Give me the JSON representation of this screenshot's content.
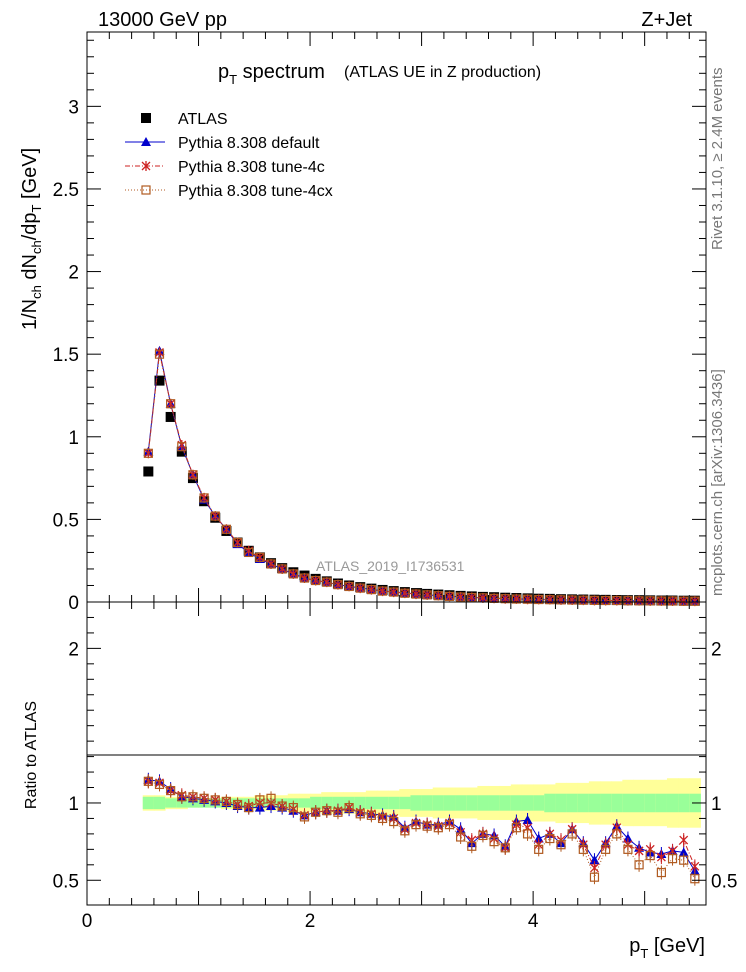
{
  "header": {
    "left": "13000 GeV pp",
    "right": "Z+Jet"
  },
  "side_text": {
    "rivet": "Rivet 3.1.10, ≥ 2.4M events",
    "site": "mcplots.cern.ch [arXiv:1306.3436]"
  },
  "watermark": "ATLAS_2019_I1736531",
  "chart_data": [
    {
      "type": "scatter",
      "title": "p_T spectrum",
      "title_main": "p",
      "title_sub": "T",
      "title_rest": " spectrum",
      "subtitle": "(ATLAS UE in Z production)",
      "ylabel": "1/N_ch dN_ch/dp_T [GeV]",
      "xlim": [
        0,
        5.55
      ],
      "ylim": [
        0,
        3.45
      ],
      "y_ticks": [
        "0",
        "0.5",
        "1",
        "1.5",
        "2",
        "2.5",
        "3"
      ],
      "legend_position": "top-left",
      "legend": [
        {
          "label": "ATLAS",
          "color": "#000000",
          "marker": "square"
        },
        {
          "label": "Pythia 8.308 default",
          "color": "#0000cc",
          "marker": "triangle"
        },
        {
          "label": "Pythia 8.308 tune-4c",
          "color": "#cc2222",
          "marker": "star"
        },
        {
          "label": "Pythia 8.308 tune-4cx",
          "color": "#b05a20",
          "marker": "open-square"
        }
      ],
      "x": [
        0.55,
        0.65,
        0.75,
        0.85,
        0.95,
        1.05,
        1.15,
        1.25,
        1.35,
        1.45,
        1.55,
        1.65,
        1.75,
        1.85,
        1.95,
        2.05,
        2.15,
        2.25,
        2.35,
        2.45,
        2.55,
        2.65,
        2.75,
        2.85,
        2.95,
        3.05,
        3.15,
        3.25,
        3.35,
        3.45,
        3.55,
        3.65,
        3.75,
        3.85,
        3.95,
        4.05,
        4.15,
        4.25,
        4.35,
        4.45,
        4.55,
        4.65,
        4.75,
        4.85,
        4.95,
        5.05,
        5.15,
        5.25,
        5.35,
        5.45
      ],
      "series": [
        {
          "name": "ATLAS",
          "values": [
            0.79,
            1.34,
            1.12,
            0.91,
            0.75,
            0.61,
            0.51,
            0.43,
            0.36,
            0.31,
            0.27,
            0.235,
            0.205,
            0.18,
            0.16,
            0.14,
            0.125,
            0.112,
            0.1,
            0.09,
            0.081,
            0.073,
            0.066,
            0.06,
            0.054,
            0.049,
            0.045,
            0.041,
            0.037,
            0.034,
            0.031,
            0.029,
            0.026,
            0.024,
            0.022,
            0.02,
            0.019,
            0.017,
            0.016,
            0.015,
            0.014,
            0.013,
            0.012,
            0.011,
            0.011,
            0.01,
            0.009,
            0.009,
            0.008,
            0.008
          ]
        },
        {
          "name": "Pythia 8.308 default",
          "values": [
            0.91,
            1.52,
            1.2,
            0.94,
            0.77,
            0.62,
            0.52,
            0.44,
            0.35,
            0.3,
            0.26,
            0.23,
            0.2,
            0.17,
            0.145,
            0.13,
            0.12,
            0.105,
            0.095,
            0.085,
            0.076,
            0.067,
            0.061,
            0.055,
            0.049,
            0.043,
            0.039,
            0.035,
            0.031,
            0.028,
            0.025,
            0.023,
            0.021,
            0.019,
            0.017,
            0.016,
            0.015,
            0.013,
            0.012,
            0.011,
            0.01,
            0.009,
            0.009,
            0.008,
            0.008,
            0.007,
            0.006,
            0.006,
            0.006,
            0.005
          ]
        },
        {
          "name": "Pythia 8.308 tune-4c",
          "values": [
            0.9,
            1.51,
            1.2,
            0.95,
            0.77,
            0.63,
            0.52,
            0.44,
            0.36,
            0.31,
            0.27,
            0.23,
            0.2,
            0.17,
            0.145,
            0.13,
            0.12,
            0.105,
            0.095,
            0.084,
            0.075,
            0.066,
            0.06,
            0.054,
            0.048,
            0.043,
            0.039,
            0.035,
            0.031,
            0.028,
            0.025,
            0.023,
            0.02,
            0.019,
            0.017,
            0.016,
            0.015,
            0.013,
            0.012,
            0.011,
            0.01,
            0.009,
            0.009,
            0.008,
            0.008,
            0.007,
            0.007,
            0.006,
            0.006,
            0.005
          ]
        },
        {
          "name": "Pythia 8.308 tune-4cx",
          "values": [
            0.9,
            1.5,
            1.2,
            0.94,
            0.77,
            0.63,
            0.52,
            0.44,
            0.36,
            0.3,
            0.27,
            0.23,
            0.2,
            0.17,
            0.145,
            0.13,
            0.12,
            0.105,
            0.094,
            0.084,
            0.075,
            0.066,
            0.06,
            0.053,
            0.048,
            0.043,
            0.038,
            0.034,
            0.03,
            0.027,
            0.025,
            0.022,
            0.02,
            0.018,
            0.017,
            0.015,
            0.014,
            0.013,
            0.012,
            0.011,
            0.01,
            0.009,
            0.009,
            0.008,
            0.007,
            0.007,
            0.006,
            0.006,
            0.005,
            0.005
          ]
        }
      ]
    },
    {
      "type": "line",
      "ylabel": "Ratio to ATLAS",
      "xlabel": "p_T [GeV]",
      "xlabel_main": "p",
      "xlabel_sub": "T",
      "xlabel_rest": " [GeV]",
      "xlim": [
        0,
        5.55
      ],
      "ylim": [
        0.34,
        2.3
      ],
      "x_ticks": [
        "0",
        "2",
        "4"
      ],
      "y_ticks": [
        "0.5",
        "1",
        "2"
      ],
      "bands": {
        "stat_color": "#99ff99",
        "total_color": "#ffff99",
        "stat_halfwidth": [
          0.04,
          0.04,
          0.03,
          0.03,
          0.03,
          0.03,
          0.03,
          0.03,
          0.03,
          0.03,
          0.03,
          0.03,
          0.03,
          0.03,
          0.03,
          0.04,
          0.04,
          0.04,
          0.04,
          0.04,
          0.04,
          0.04,
          0.04,
          0.04,
          0.05,
          0.05,
          0.05,
          0.05,
          0.05,
          0.05,
          0.05,
          0.05,
          0.05,
          0.05,
          0.05,
          0.05,
          0.06,
          0.06,
          0.06,
          0.06,
          0.06,
          0.06,
          0.06,
          0.06,
          0.06,
          0.06,
          0.06,
          0.06,
          0.06,
          0.06
        ],
        "total_halfwidth": [
          0.05,
          0.05,
          0.04,
          0.04,
          0.03,
          0.03,
          0.03,
          0.04,
          0.04,
          0.04,
          0.05,
          0.05,
          0.05,
          0.06,
          0.06,
          0.06,
          0.07,
          0.07,
          0.07,
          0.07,
          0.08,
          0.08,
          0.08,
          0.09,
          0.09,
          0.09,
          0.1,
          0.1,
          0.1,
          0.1,
          0.11,
          0.11,
          0.11,
          0.12,
          0.12,
          0.12,
          0.12,
          0.13,
          0.13,
          0.13,
          0.14,
          0.14,
          0.14,
          0.15,
          0.15,
          0.15,
          0.15,
          0.16,
          0.16,
          0.16
        ]
      },
      "series": [
        {
          "name": "Pythia 8.308 default",
          "values": [
            1.15,
            1.14,
            1.09,
            1.04,
            1.03,
            1.02,
            1.01,
            1.0,
            0.98,
            0.97,
            0.97,
            0.98,
            0.97,
            0.95,
            0.92,
            0.94,
            0.95,
            0.95,
            0.96,
            0.94,
            0.93,
            0.92,
            0.91,
            0.84,
            0.88,
            0.86,
            0.86,
            0.88,
            0.83,
            0.74,
            0.8,
            0.79,
            0.72,
            0.88,
            0.89,
            0.77,
            0.8,
            0.74,
            0.83,
            0.74,
            0.63,
            0.74,
            0.85,
            0.77,
            0.71,
            0.68,
            0.67,
            0.69,
            0.68,
            0.56
          ]
        },
        {
          "name": "Pythia 8.308 tune-4c",
          "values": [
            1.14,
            1.13,
            1.08,
            1.05,
            1.04,
            1.03,
            1.02,
            1.01,
            0.99,
            0.98,
            1.0,
            1.0,
            0.98,
            0.96,
            0.92,
            0.94,
            0.95,
            0.95,
            0.97,
            0.94,
            0.93,
            0.91,
            0.9,
            0.83,
            0.87,
            0.86,
            0.85,
            0.87,
            0.81,
            0.76,
            0.8,
            0.77,
            0.71,
            0.86,
            0.84,
            0.73,
            0.8,
            0.76,
            0.83,
            0.73,
            0.58,
            0.73,
            0.84,
            0.73,
            0.69,
            0.7,
            0.65,
            0.69,
            0.76,
            0.59
          ]
        },
        {
          "name": "Pythia 8.308 tune-4cx",
          "values": [
            1.14,
            1.12,
            1.08,
            1.04,
            1.04,
            1.03,
            1.02,
            1.01,
            0.99,
            0.97,
            1.02,
            1.03,
            0.98,
            0.97,
            0.91,
            0.94,
            0.95,
            0.94,
            0.97,
            0.93,
            0.92,
            0.9,
            0.88,
            0.82,
            0.86,
            0.85,
            0.84,
            0.86,
            0.78,
            0.72,
            0.79,
            0.75,
            0.71,
            0.84,
            0.8,
            0.7,
            0.77,
            0.73,
            0.8,
            0.7,
            0.52,
            0.7,
            0.8,
            0.7,
            0.6,
            0.66,
            0.55,
            0.64,
            0.63,
            0.51
          ]
        }
      ]
    }
  ]
}
